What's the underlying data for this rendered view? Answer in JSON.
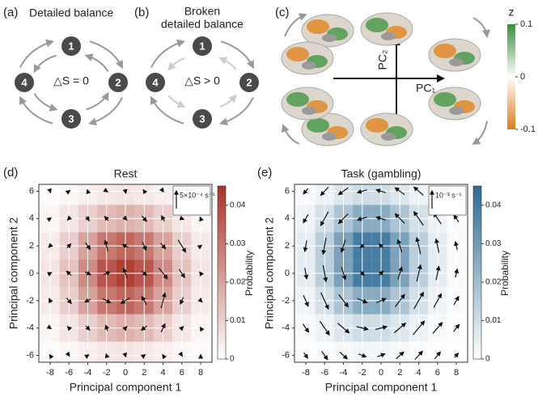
{
  "panels": {
    "a": {
      "label": "(a)",
      "title": "Detailed balance",
      "nodes": [
        "1",
        "2",
        "3",
        "4"
      ],
      "entropy": "△S = 0"
    },
    "b": {
      "label": "(b)",
      "title": [
        "Broken",
        "detailed balance"
      ],
      "nodes": [
        "1",
        "2",
        "3",
        "4"
      ],
      "entropy": "△S > 0"
    },
    "c": {
      "label": "(c)",
      "x_axis": "PC₁",
      "y_axis": "PC₂",
      "colorbar": {
        "label": "z",
        "lim": [
          -0.1,
          0.1
        ],
        "ticks": [
          0.1,
          0,
          -0.1
        ]
      }
    }
  },
  "chart_data": [
    {
      "type": "heatmap",
      "panel_label": "(d)",
      "title": "Rest",
      "x_label": "Principal component 1",
      "y_label": "Principal component 2",
      "scale_label": "5×10⁻⁴ s⁻¹",
      "color": "#a93226",
      "x": [
        -8,
        -6,
        -4,
        -2,
        0,
        2,
        4,
        6,
        8
      ],
      "y": [
        6,
        4,
        2,
        0,
        -2,
        -4,
        -6
      ],
      "z": [
        [
          0.0008,
          0.0018,
          0.0035,
          0.005,
          0.0057,
          0.005,
          0.0035,
          0.0018,
          0.0008
        ],
        [
          0.0023,
          0.0055,
          0.0105,
          0.0151,
          0.0172,
          0.0151,
          0.0105,
          0.0055,
          0.0023
        ],
        [
          0.0045,
          0.0108,
          0.0205,
          0.0296,
          0.0336,
          0.0296,
          0.0205,
          0.0108,
          0.0045
        ],
        [
          0.0057,
          0.0134,
          0.0256,
          0.037,
          0.042,
          0.037,
          0.0256,
          0.0134,
          0.0057
        ],
        [
          0.0045,
          0.0108,
          0.0205,
          0.0296,
          0.0336,
          0.0296,
          0.0205,
          0.0108,
          0.0045
        ],
        [
          0.0023,
          0.0055,
          0.0105,
          0.0151,
          0.0172,
          0.0151,
          0.0105,
          0.0055,
          0.0023
        ],
        [
          0.0008,
          0.0018,
          0.0035,
          0.005,
          0.0057,
          0.005,
          0.0035,
          0.0018,
          0.0008
        ]
      ],
      "u": [
        [
          0.1,
          0.2,
          -0.1,
          0.2,
          0.1,
          -0.2,
          0.1,
          0,
          0.1
        ],
        [
          0.2,
          -0.3,
          0.3,
          -0.4,
          0.3,
          0.5,
          -0.3,
          0.4,
          -0.1
        ],
        [
          -0.3,
          0.4,
          0.5,
          -0.3,
          -0.6,
          0.4,
          0.5,
          0.8,
          0.2
        ],
        [
          0.3,
          -0.5,
          0.6,
          0.7,
          -0.4,
          0.5,
          0.9,
          0.6,
          -0.2
        ],
        [
          -0.2,
          0.5,
          -0.6,
          0.8,
          -0.9,
          -0.5,
          0.4,
          -0.3,
          0.3
        ],
        [
          0.2,
          -0.3,
          0.4,
          -0.2,
          0.3,
          -0.6,
          0.4,
          0.3,
          -0.1
        ],
        [
          -0.1,
          0.1,
          0.2,
          -0.1,
          0.1,
          0.2,
          -0.1,
          0.1,
          0
        ]
      ],
      "v": [
        [
          -0.2,
          0.1,
          0.2,
          -0.1,
          -0.3,
          0.2,
          -0.1,
          0.2,
          0
        ],
        [
          0.1,
          -0.2,
          -0.3,
          0.3,
          -0.2,
          -0.4,
          0.4,
          -0.1,
          0.2
        ],
        [
          -0.2,
          0.3,
          -0.5,
          0.8,
          0.2,
          -0.6,
          -0.4,
          -0.9,
          0.1
        ],
        [
          0.1,
          0.3,
          -0.2,
          0.2,
          0.7,
          -0.3,
          -0.8,
          -0.6,
          0.2
        ],
        [
          0.3,
          -0.4,
          -0.2,
          -0.3,
          -0.4,
          0.6,
          1.1,
          -0.5,
          -0.2
        ],
        [
          -0.1,
          0.2,
          -0.3,
          0.4,
          0.2,
          -0.3,
          0.6,
          0.2,
          0.1
        ],
        [
          0.1,
          -0.1,
          0.1,
          0.2,
          -0.2,
          0.1,
          0.1,
          -0.1,
          0.1
        ]
      ],
      "xlim": [
        -9.2,
        9.2
      ],
      "ylim": [
        -6.5,
        6.5
      ],
      "xticks": [
        -8,
        -6,
        -4,
        -2,
        0,
        2,
        4,
        6,
        8
      ],
      "yticks": [
        -6,
        -4,
        -2,
        0,
        2,
        4,
        6
      ],
      "colorbar": {
        "label": "Probability",
        "lim": [
          0,
          0.045
        ],
        "ticks": [
          0,
          0.01,
          0.02,
          0.03,
          0.04
        ]
      }
    },
    {
      "type": "heatmap",
      "panel_label": "(e)",
      "title": "Task (gambling)",
      "x_label": "Principal component 1",
      "y_label": "Principal component 2",
      "scale_label": "10⁻³ s⁻¹",
      "color": "#2e6a93",
      "x": [
        -8,
        -6,
        -4,
        -2,
        0,
        2,
        4,
        6,
        8
      ],
      "y": [
        6,
        4,
        2,
        0,
        -2,
        -4,
        -6
      ],
      "z": [
        [
          0.0015,
          0.0039,
          0.0075,
          0.0104,
          0.0104,
          0.0075,
          0.0039,
          0.0015,
          0.0004
        ],
        [
          0.0035,
          0.0094,
          0.0181,
          0.0252,
          0.0252,
          0.0181,
          0.0094,
          0.0035,
          0.001
        ],
        [
          0.0055,
          0.0147,
          0.0282,
          0.0393,
          0.0393,
          0.0282,
          0.0147,
          0.0055,
          0.0015
        ],
        [
          0.0055,
          0.0147,
          0.0282,
          0.0393,
          0.0393,
          0.0282,
          0.0147,
          0.0055,
          0.0015
        ],
        [
          0.0035,
          0.0094,
          0.0181,
          0.0252,
          0.0252,
          0.0181,
          0.0094,
          0.0035,
          0.001
        ],
        [
          0.0015,
          0.0039,
          0.0075,
          0.0104,
          0.0104,
          0.0075,
          0.0039,
          0.0015,
          0.0004
        ],
        [
          0.0004,
          0.001,
          0.0019,
          0.0027,
          0.0027,
          0.0019,
          0.001,
          0.0004,
          0.0001
        ]
      ],
      "u": [
        [
          -0.5,
          -0.8,
          -1,
          -1,
          -1,
          -1,
          -1,
          -0.8,
          -0.5
        ],
        [
          -0.5,
          -0.8,
          -1,
          -1,
          -1,
          -1,
          -1,
          -0.8,
          -0.5
        ],
        [
          -0.2,
          -0.3,
          -0.4,
          -0.4,
          -0.4,
          -0.4,
          -0.4,
          -0.3,
          -0.2
        ],
        [
          0.2,
          0.3,
          0.4,
          0.4,
          0.4,
          0.4,
          0.4,
          0.3,
          0.2
        ],
        [
          0.5,
          0.8,
          1,
          1,
          1,
          1,
          1,
          0.8,
          0.5
        ],
        [
          0.6,
          1,
          1.2,
          1.2,
          1.2,
          1.2,
          1.2,
          1,
          0.6
        ],
        [
          0.4,
          0.6,
          0.8,
          0.8,
          0.8,
          0.8,
          0.8,
          0.6,
          0.4
        ]
      ],
      "v": [
        [
          -0.4,
          -0.6,
          -0.5,
          -0.2,
          0.2,
          0.5,
          0.6,
          0.5,
          0.3
        ],
        [
          -0.6,
          -1,
          -0.7,
          -0.2,
          0.2,
          0.7,
          1,
          0.8,
          0.5
        ],
        [
          -0.8,
          -1.2,
          -0.9,
          -0.3,
          0.3,
          0.9,
          1.2,
          1,
          0.6
        ],
        [
          -0.8,
          -1.2,
          -0.9,
          -0.3,
          0.3,
          0.9,
          1.2,
          1,
          0.6
        ],
        [
          -0.8,
          -1.2,
          -0.9,
          -0.3,
          0.3,
          0.9,
          1.2,
          1,
          0.6
        ],
        [
          -0.6,
          -1,
          -0.7,
          -0.2,
          0.2,
          0.7,
          1,
          0.8,
          0.5
        ],
        [
          -0.4,
          -0.6,
          -0.5,
          -0.2,
          0.2,
          0.5,
          0.6,
          0.5,
          0.3
        ]
      ],
      "xlim": [
        -9.2,
        9.2
      ],
      "ylim": [
        -6.5,
        6.5
      ],
      "xticks": [
        -8,
        -6,
        -4,
        -2,
        0,
        2,
        4,
        6,
        8
      ],
      "yticks": [
        -6,
        -4,
        -2,
        0,
        2,
        4,
        6
      ],
      "colorbar": {
        "label": "Probability",
        "lim": [
          0,
          0.045
        ],
        "ticks": [
          0,
          0.01,
          0.02,
          0.03,
          0.04
        ]
      }
    }
  ]
}
